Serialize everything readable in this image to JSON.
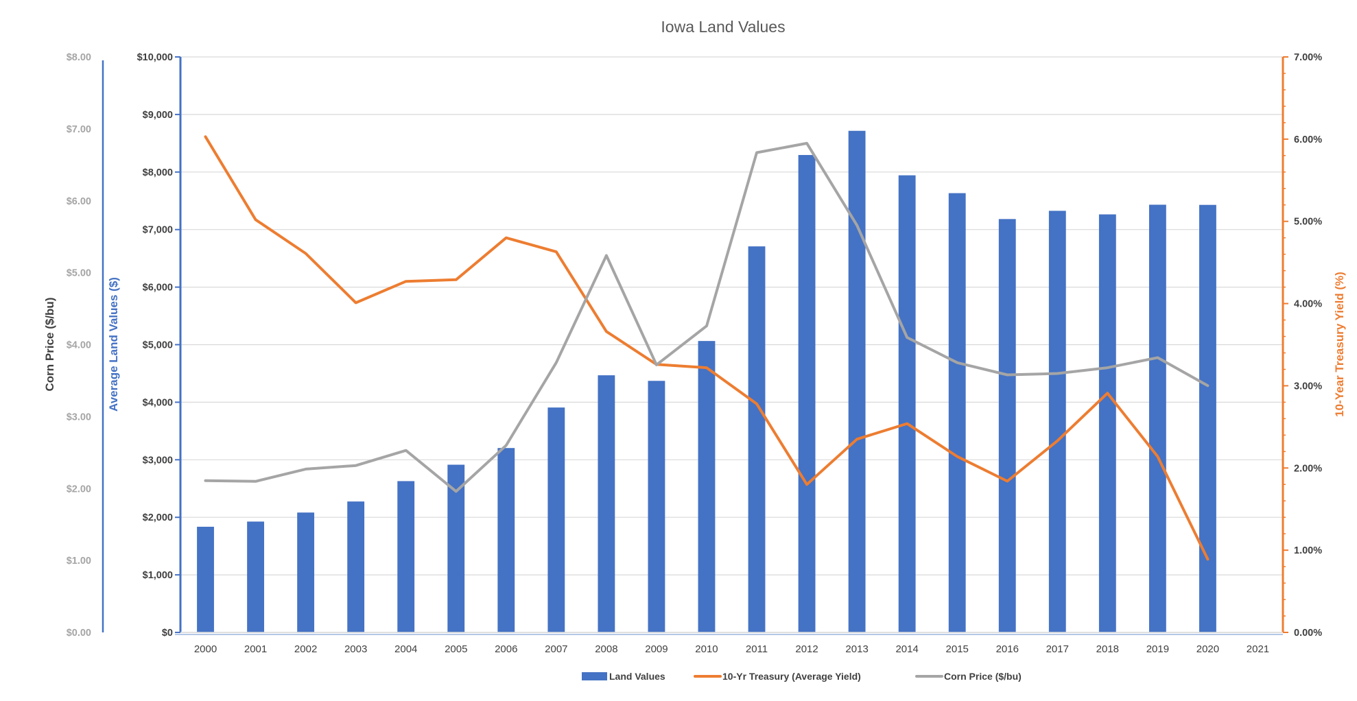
{
  "chart_data": {
    "type": "bar",
    "title": "Iowa Land Values",
    "categories": [
      "2000",
      "2001",
      "2002",
      "2003",
      "2004",
      "2005",
      "2006",
      "2007",
      "2008",
      "2009",
      "2010",
      "2011",
      "2012",
      "2013",
      "2014",
      "2015",
      "2016",
      "2017",
      "2018",
      "2019",
      "2020",
      "2021"
    ],
    "series": [
      {
        "name": "Land Values",
        "type": "bar",
        "axis": "left-inner",
        "color": "#4472C4",
        "values": [
          1836,
          1926,
          2083,
          2275,
          2629,
          2914,
          3204,
          3908,
          4468,
          4371,
          5064,
          6708,
          8296,
          8716,
          7943,
          7633,
          7183,
          7326,
          7264,
          7432,
          7429,
          null
        ]
      },
      {
        "name": "10-Yr Treasury (Average Yield)",
        "type": "line",
        "axis": "right",
        "color": "#ED7D31",
        "values": [
          6.03,
          5.02,
          4.61,
          4.01,
          4.27,
          4.29,
          4.8,
          4.63,
          3.66,
          3.26,
          3.22,
          2.78,
          1.8,
          2.35,
          2.54,
          2.14,
          1.84,
          2.33,
          2.91,
          2.14,
          0.89,
          null
        ]
      },
      {
        "name": "Corn Price ($/bu)",
        "type": "line",
        "axis": "left-outer",
        "color": "#A5A5A5",
        "values": [
          2.11,
          2.1,
          2.27,
          2.32,
          2.53,
          1.96,
          2.6,
          3.75,
          5.24,
          3.72,
          4.26,
          6.67,
          6.8,
          5.66,
          4.1,
          3.75,
          3.58,
          3.6,
          3.68,
          3.82,
          3.43,
          null
        ]
      }
    ],
    "axes": {
      "left_outer": {
        "label": "Corn Price ($/bu)",
        "range": [
          0,
          8
        ],
        "ticks": [
          "$0.00",
          "$1.00",
          "$2.00",
          "$3.00",
          "$4.00",
          "$5.00",
          "$6.00",
          "$7.00",
          "$8.00"
        ],
        "color": "#A5A5A5"
      },
      "left_inner": {
        "label": "Average Land Values ($)",
        "range": [
          0,
          10000
        ],
        "ticks": [
          "$0",
          "$1,000",
          "$2,000",
          "$3,000",
          "$4,000",
          "$5,000",
          "$6,000",
          "$7,000",
          "$8,000",
          "$9,000",
          "$10,000"
        ],
        "color": "#4472C4"
      },
      "right": {
        "label": "10-Year Treasury Yield (%)",
        "range": [
          0,
          7
        ],
        "ticks": [
          "0.00%",
          "1.00%",
          "2.00%",
          "3.00%",
          "4.00%",
          "5.00%",
          "6.00%",
          "7.00%"
        ],
        "color": "#ED7D31"
      }
    },
    "grid": true,
    "legend_position": "bottom"
  },
  "colors": {
    "grid": "#D9D9D9",
    "title": "#595959",
    "axis_text_dark": "#404040"
  }
}
